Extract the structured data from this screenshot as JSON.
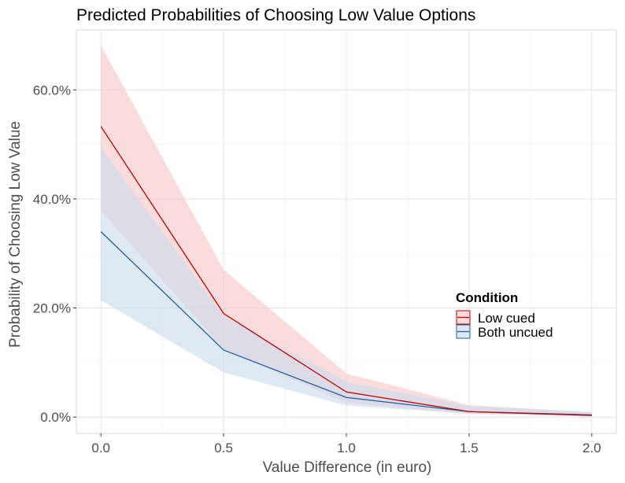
{
  "chart_data": {
    "type": "line",
    "title": "Predicted Probabilities of Choosing Low Value Options",
    "xlabel": "Value Difference (in euro)",
    "ylabel": "Probability of Choosing Low Value",
    "x": [
      0.0,
      0.5,
      1.0,
      1.5,
      2.0
    ],
    "x_ticks": [
      0.0,
      0.5,
      1.0,
      1.5,
      2.0
    ],
    "x_tick_labels": [
      "0.0",
      "0.5",
      "1.0",
      "1.5",
      "2.0"
    ],
    "y_ticks": [
      0,
      20,
      40,
      60
    ],
    "y_tick_labels": [
      "0.0%",
      "20.0%",
      "40.0%",
      "60.0%"
    ],
    "xlim": [
      -0.1,
      2.1
    ],
    "ylim": [
      -3,
      71
    ],
    "grid": true,
    "legend_title": "Condition",
    "legend_position": "right",
    "series": [
      {
        "name": "Low cued",
        "color": "#c00000",
        "fill": "#f8c6c8",
        "values": [
          53.3,
          19.0,
          4.6,
          1.0,
          0.3
        ],
        "lower": [
          37.8,
          12.5,
          2.6,
          0.6,
          0.1
        ],
        "upper": [
          68.2,
          27.0,
          8.0,
          2.2,
          0.9
        ]
      },
      {
        "name": "Both uncued",
        "color": "#1f5fa6",
        "fill": "#c9dbec",
        "values": [
          34.0,
          12.3,
          3.6,
          1.0,
          0.4
        ],
        "lower": [
          21.4,
          8.2,
          2.1,
          0.6,
          0.2
        ],
        "upper": [
          49.5,
          18.5,
          6.5,
          2.0,
          0.9
        ]
      }
    ]
  }
}
